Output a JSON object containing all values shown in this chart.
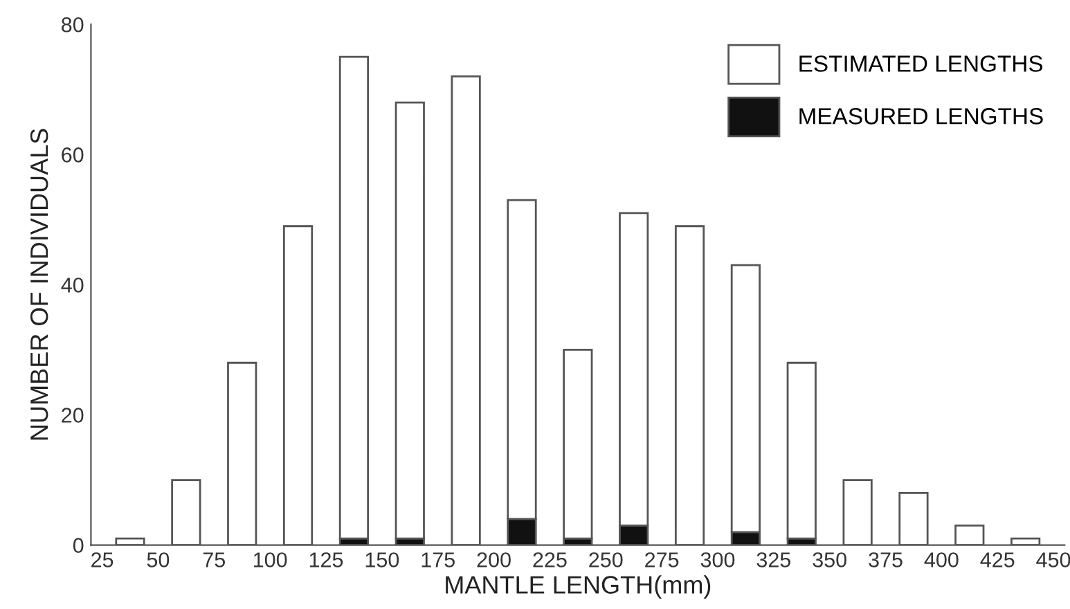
{
  "chart_data": {
    "type": "bar",
    "xlabel": "MANTLE LENGTH(mm)",
    "ylabel": "NUMBER OF INDIVIDUALS",
    "x": [
      37.5,
      62.5,
      87.5,
      112.5,
      137.5,
      162.5,
      187.5,
      212.5,
      237.5,
      262.5,
      287.5,
      312.5,
      337.5,
      362.5,
      387.5,
      412.5,
      437.5
    ],
    "stacked": true,
    "series": [
      {
        "name": "MEASURED LENGTHS",
        "color": "#111111",
        "values": [
          0,
          0,
          0,
          0,
          1,
          1,
          0,
          4,
          1,
          3,
          0,
          2,
          1,
          0,
          0,
          0,
          0
        ]
      },
      {
        "name": "ESTIMATED LENGTHS",
        "color": "#ffffff",
        "values": [
          1,
          10,
          28,
          49,
          74,
          67,
          72,
          49,
          29,
          48,
          49,
          41,
          27,
          10,
          8,
          3,
          1
        ]
      }
    ],
    "xlim": [
      20,
      455
    ],
    "xticks": [
      25,
      50,
      75,
      100,
      125,
      150,
      175,
      200,
      225,
      250,
      275,
      300,
      325,
      350,
      375,
      400,
      425,
      450
    ],
    "ylim": [
      0,
      80
    ],
    "yticks": [
      0,
      20,
      40,
      60,
      80
    ],
    "grid": false,
    "legend": "top right"
  }
}
